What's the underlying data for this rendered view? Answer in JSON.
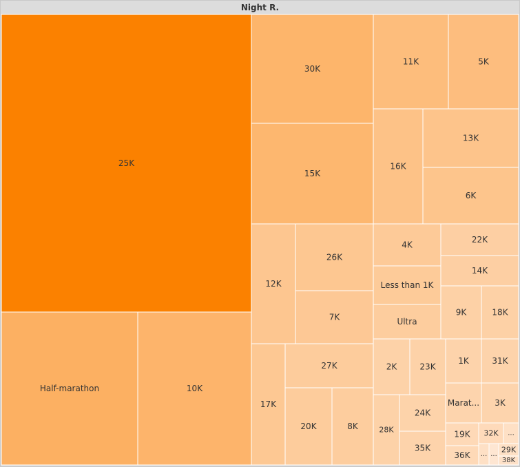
{
  "chart_data": {
    "type": "treemap",
    "title": "Night R.",
    "colors": {
      "max": "#fb8100",
      "min": "#fee6d2",
      "border": "#ffffff",
      "label": "#333333"
    },
    "items": [
      {
        "label": "25K",
        "value": 2400
      },
      {
        "label": "Half-marathon",
        "value": 610
      },
      {
        "label": "10K",
        "value": 510
      },
      {
        "label": "30K",
        "value": 500
      },
      {
        "label": "15K",
        "value": 460
      },
      {
        "label": "11K",
        "value": 340
      },
      {
        "label": "5K",
        "value": 330
      },
      {
        "label": "16K",
        "value": 260
      },
      {
        "label": "13K",
        "value": 230
      },
      {
        "label": "6K",
        "value": 220
      },
      {
        "label": "12K",
        "value": 200
      },
      {
        "label": "26K",
        "value": 190
      },
      {
        "label": "7K",
        "value": 170
      },
      {
        "label": "4K",
        "value": 150
      },
      {
        "label": "Less than 1K",
        "value": 145
      },
      {
        "label": "Ultra",
        "value": 120
      },
      {
        "label": "22K",
        "value": 100
      },
      {
        "label": "14K",
        "value": 100
      },
      {
        "label": "9K",
        "value": 90
      },
      {
        "label": "18K",
        "value": 90
      },
      {
        "label": "17K",
        "value": 180
      },
      {
        "label": "27K",
        "value": 130
      },
      {
        "label": "20K",
        "value": 130
      },
      {
        "label": "8K",
        "value": 120
      },
      {
        "label": "2K",
        "value": 80
      },
      {
        "label": "23K",
        "value": 80
      },
      {
        "label": "28K",
        "value": 80
      },
      {
        "label": "24K",
        "value": 75
      },
      {
        "label": "35K",
        "value": 70
      },
      {
        "label": "1K",
        "value": 70
      },
      {
        "label": "31K",
        "value": 70
      },
      {
        "label": "Marat...",
        "value": 65
      },
      {
        "label": "3K",
        "value": 65
      },
      {
        "label": "19K",
        "value": 40
      },
      {
        "label": "36K",
        "value": 40
      },
      {
        "label": "32K",
        "value": 35
      },
      {
        "label": "...",
        "value": 20
      },
      {
        "label": "...",
        "value": 20
      },
      {
        "label": "...",
        "value": 15
      },
      {
        "label": "29K",
        "value": 20
      },
      {
        "label": "38K",
        "value": 18
      }
    ]
  }
}
